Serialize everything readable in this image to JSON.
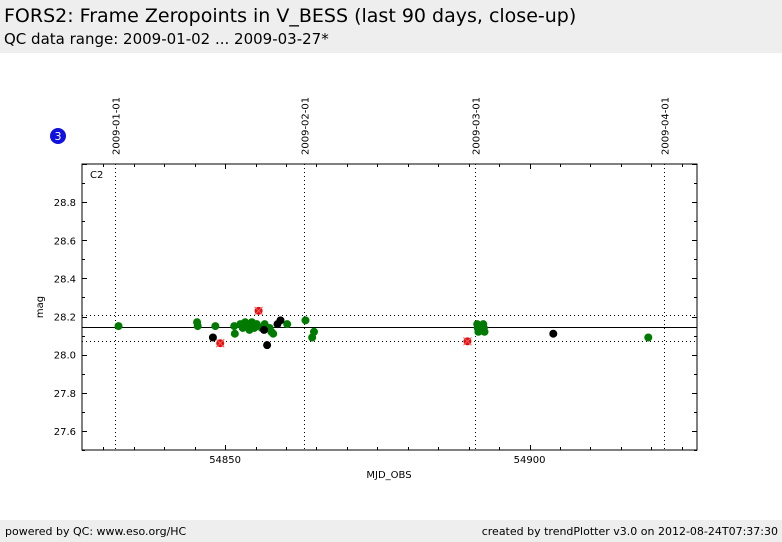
{
  "header": {
    "title": "FORS2: Frame Zeropoints in V_BESS (last 90 days, close-up)",
    "subtitle": "QC data range: 2009-01-02 ... 2009-03-27*"
  },
  "badge": {
    "label": "3",
    "color": "#1010e0"
  },
  "footer": {
    "left": "powered by QC: www.eso.org/HC",
    "right": "created by trendPlotter v3.0 on 2012-08-24T07:37:30"
  },
  "colors": {
    "ok": "#007a00",
    "other": "#000000",
    "flagged": "#dd1111"
  },
  "chart_data": {
    "type": "scatter",
    "panel_label": "C2",
    "xlabel": "MJD_OBS",
    "ylabel": "mag",
    "xlim": [
      54826.5,
      54927.5
    ],
    "ylim": [
      27.5,
      29.0
    ],
    "xticks": [
      54850,
      54900
    ],
    "yticks": [
      27.6,
      27.8,
      28.0,
      28.2,
      28.4,
      28.6,
      28.8
    ],
    "reference_line": 28.145,
    "limit_lines": [
      28.21,
      28.07
    ],
    "date_markers": [
      {
        "label": "2009-01-01",
        "mjd": 54832
      },
      {
        "label": "2009-02-01",
        "mjd": 54863
      },
      {
        "label": "2009-03-01",
        "mjd": 54891
      },
      {
        "label": "2009-04-01",
        "mjd": 54922
      }
    ],
    "series": [
      {
        "key": "ok",
        "x": [
          54832.5,
          54845.4,
          54845.5,
          54848.4,
          54851.5,
          54851.6,
          54852.5,
          54852.9,
          54853.3,
          54853.6,
          54854.0,
          54854.4,
          54854.8,
          54855.2,
          54856.0,
          54856.5,
          54857.3,
          54857.6,
          54857.9,
          54860.2,
          54863.2,
          54864.3,
          54864.6,
          54891.4,
          54891.5,
          54891.6,
          54892.4,
          54892.5,
          54892.6,
          54919.5
        ],
        "y": [
          28.15,
          28.17,
          28.15,
          28.15,
          28.15,
          28.11,
          28.16,
          28.14,
          28.17,
          28.15,
          28.13,
          28.17,
          28.14,
          28.16,
          28.14,
          28.16,
          28.14,
          28.12,
          28.11,
          28.16,
          28.18,
          28.09,
          28.12,
          28.16,
          28.14,
          28.12,
          28.16,
          28.14,
          28.12,
          28.09
        ]
      },
      {
        "key": "other",
        "x": [
          54848.0,
          54856.4,
          54856.9,
          54858.6,
          54859.1,
          54903.9
        ],
        "y": [
          28.09,
          28.13,
          28.05,
          28.16,
          28.18,
          28.11
        ]
      },
      {
        "key": "flagged",
        "x": [
          54849.2,
          54855.5,
          54889.8
        ],
        "y": [
          28.06,
          28.23,
          28.07
        ]
      }
    ]
  }
}
